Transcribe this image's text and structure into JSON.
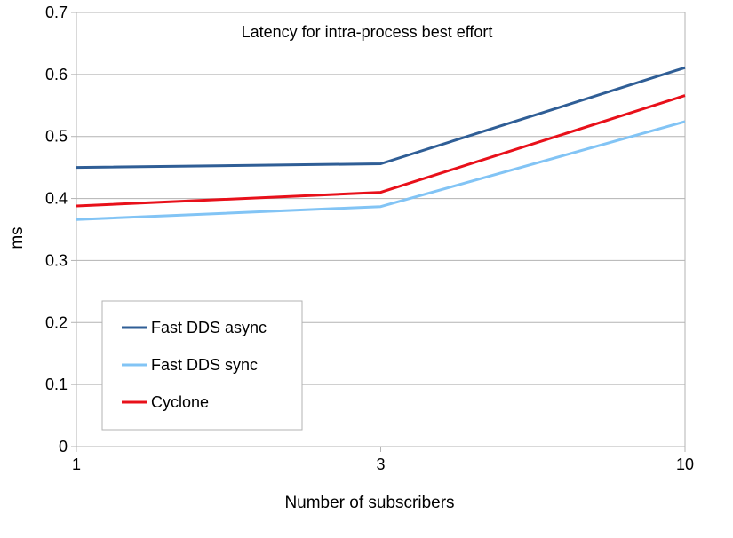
{
  "chart_data": {
    "type": "line",
    "title": "Latency for intra-process best effort",
    "xlabel": "Number of subscribers",
    "ylabel": "ms",
    "categories": [
      "1",
      "3",
      "10"
    ],
    "ylim": [
      0,
      0.7
    ],
    "yticks": [
      "0",
      "0.1",
      "0.2",
      "0.3",
      "0.4",
      "0.5",
      "0.6",
      "0.7"
    ],
    "grid": true,
    "legend_position": "bottom-left",
    "series": [
      {
        "name": "Fast DDS async",
        "color": "#2f5e96",
        "values": [
          0.45,
          0.456,
          0.611
        ]
      },
      {
        "name": "Fast DDS sync",
        "color": "#82c4f5",
        "values": [
          0.366,
          0.387,
          0.524
        ]
      },
      {
        "name": "Cyclone",
        "color": "#e8101a",
        "values": [
          0.388,
          0.41,
          0.566
        ]
      }
    ]
  }
}
